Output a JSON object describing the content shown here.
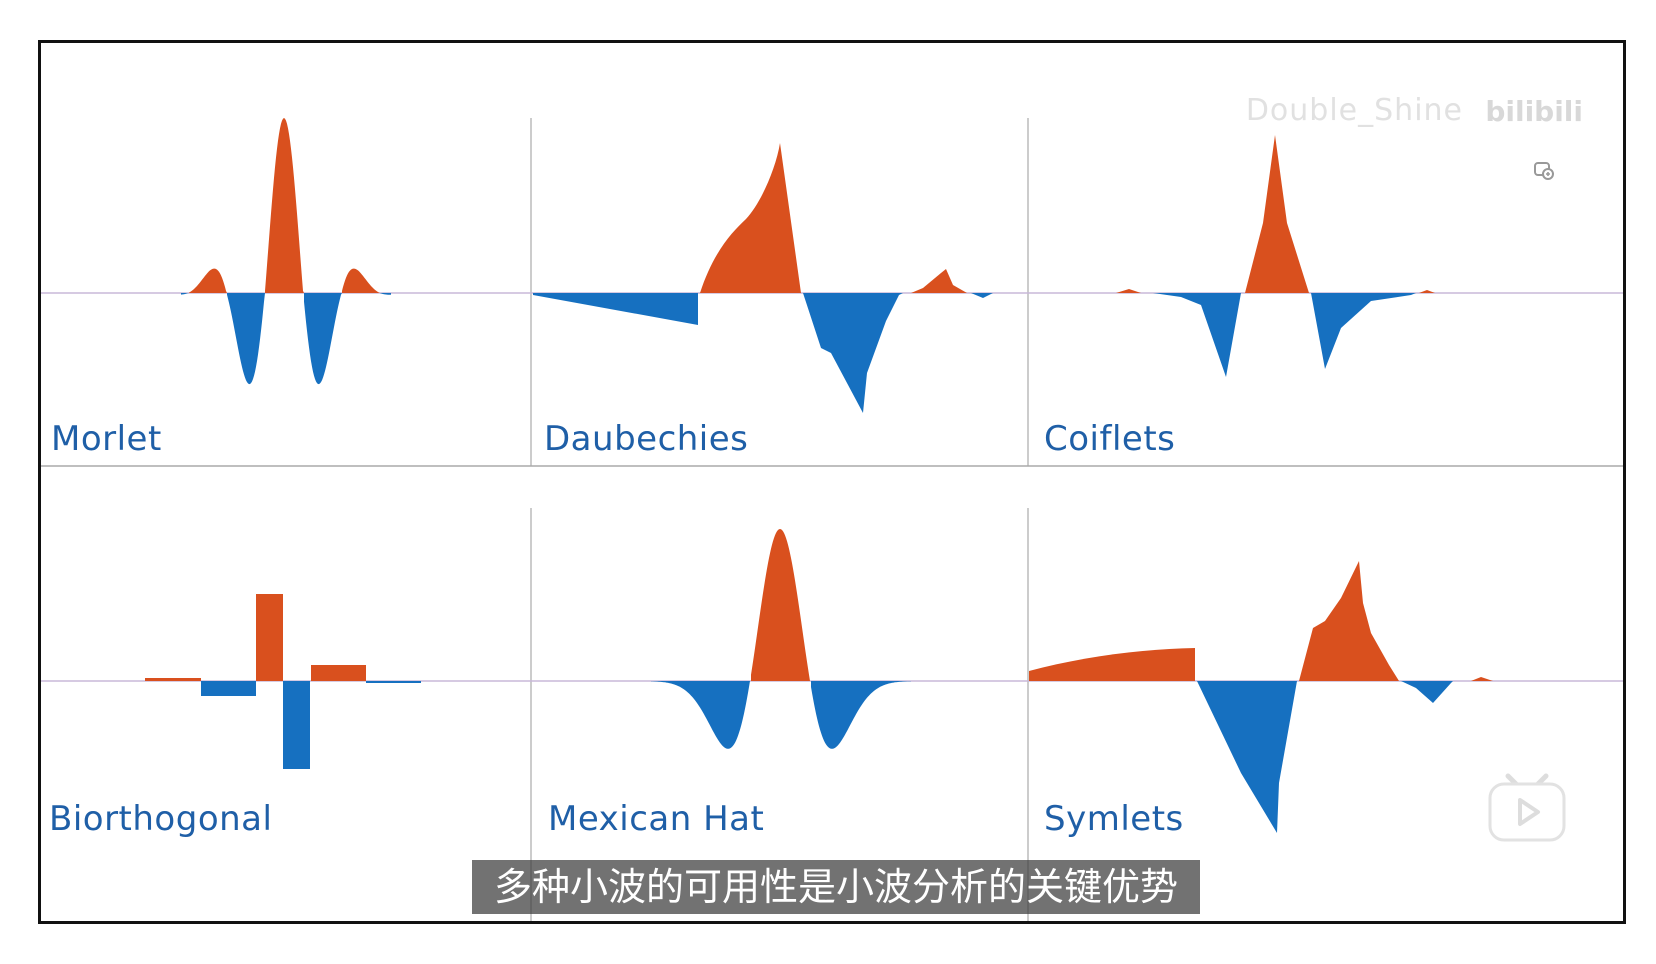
{
  "panels": [
    {
      "name": "Morlet"
    },
    {
      "name": "Daubechies"
    },
    {
      "name": "Coiflets"
    },
    {
      "name": "Biorthogonal"
    },
    {
      "name": "Mexican Hat"
    },
    {
      "name": "Symlets"
    }
  ],
  "colors": {
    "positive": "#d9501e",
    "negative": "#1670c0",
    "label": "#1f5fa7",
    "axis": "#c8b8d8",
    "divider": "#aaaaaa"
  },
  "watermark": {
    "user": "Double_Shine",
    "logo": "bilibili"
  },
  "subtitle": "多种小波的可用性是小波分析的关键优势",
  "icons": {
    "play": "play-icon",
    "watermark_badge": "bilibili-badge-icon"
  }
}
